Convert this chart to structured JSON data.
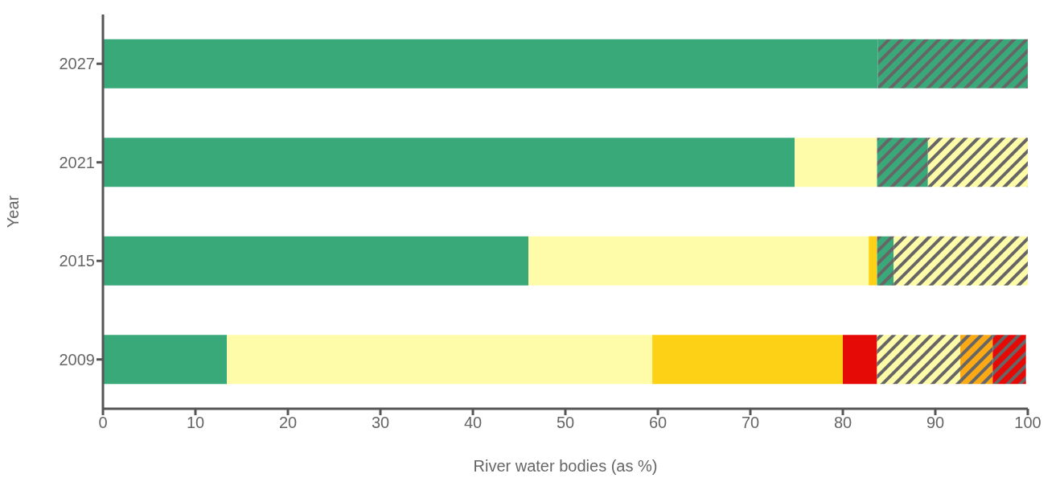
{
  "chart_data": {
    "type": "bar",
    "orientation": "horizontal",
    "stacked": true,
    "xlabel": "River water bodies (as %)",
    "ylabel": "Year",
    "categories": [
      "2027",
      "2021",
      "2015",
      "2009"
    ],
    "xlim": [
      0,
      100
    ],
    "xticks": [
      0,
      10,
      20,
      30,
      40,
      50,
      60,
      70,
      80,
      90,
      100
    ],
    "grid": false,
    "legend": false,
    "series": [
      {
        "color": "#3aa97a",
        "values": [
          83.8,
          74.8,
          46.0,
          13.4
        ]
      },
      {
        "color": "#fefca8",
        "values": [
          null,
          8.9,
          36.8,
          46.0
        ]
      },
      {
        "color": "#fdd216",
        "values": [
          null,
          null,
          0.9,
          20.6
        ]
      },
      {
        "color": "#e60a06",
        "values": [
          null,
          null,
          null,
          3.7
        ]
      },
      {
        "color": "#3aa97a",
        "line_style": "dashed",
        "values": [
          16.2,
          5.5,
          1.8,
          null
        ]
      },
      {
        "color": "#fefca8",
        "line_style": "dashed",
        "values": [
          null,
          10.8,
          14.5,
          9.0
        ]
      },
      {
        "color": "#fba914",
        "line_style": "dashed",
        "values": [
          null,
          null,
          null,
          3.5
        ]
      },
      {
        "color": "#e60a06",
        "line_style": "dashed",
        "values": [
          null,
          null,
          null,
          3.6
        ]
      }
    ]
  }
}
